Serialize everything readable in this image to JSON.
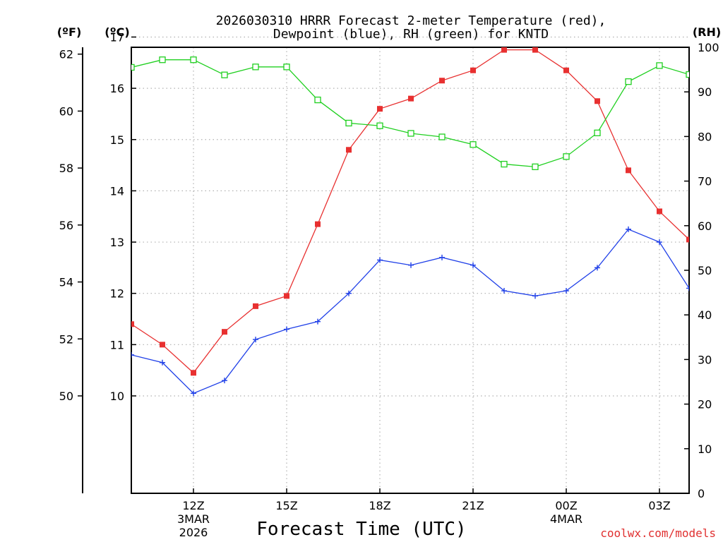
{
  "chart_data": {
    "type": "line",
    "title": "2026030310 HRRR Forecast 2-meter Temperature (red),",
    "title_line2": "Dewpoint (blue), RH (green) for KNTD",
    "xlabel": "Forecast Time (UTC)",
    "unit_labels": {
      "fahrenheit": "(ºF)",
      "celsius": "(ºC)",
      "rh": "(RH)"
    },
    "hours": [
      0,
      1,
      2,
      3,
      4,
      5,
      6,
      7,
      8,
      9,
      10,
      11,
      12,
      13,
      14,
      15,
      16,
      17,
      18,
      19
    ],
    "x_ticks": [
      {
        "hour": 2,
        "label": "12Z",
        "date_line1": "3MAR",
        "date_line2": "2026"
      },
      {
        "hour": 5,
        "label": "15Z"
      },
      {
        "hour": 8,
        "label": "18Z"
      },
      {
        "hour": 11,
        "label": "21Z"
      },
      {
        "hour": 14,
        "label": "00Z",
        "date_line1": "4MAR"
      },
      {
        "hour": 17,
        "label": "03Z"
      }
    ],
    "celsius_axis": {
      "range": [
        8.1,
        16.8
      ],
      "ticks": [
        "10",
        "11",
        "12",
        "13",
        "14",
        "15",
        "16",
        "17"
      ]
    },
    "fahrenheit_axis": {
      "range": [
        46.58,
        62.24
      ],
      "ticks": [
        "50",
        "52",
        "54",
        "56",
        "58",
        "60",
        "62"
      ]
    },
    "rh_axis": {
      "range": [
        0,
        100
      ],
      "ticks": [
        "0",
        "10",
        "20",
        "30",
        "40",
        "50",
        "60",
        "70",
        "80",
        "90",
        "100"
      ]
    },
    "series": [
      {
        "name": "2-meter Temperature",
        "unit": "C",
        "color": "#e83030",
        "marker": "filled-square",
        "values": [
          11.4,
          11.0,
          10.45,
          11.25,
          11.75,
          11.95,
          13.35,
          14.8,
          15.6,
          15.8,
          16.15,
          16.35,
          16.75,
          16.75,
          16.35,
          15.75,
          14.4,
          13.6,
          13.05,
          null
        ]
      },
      {
        "name": "Dewpoint",
        "unit": "C",
        "color": "#2040e8",
        "marker": "plus",
        "values": [
          10.8,
          10.65,
          10.05,
          10.3,
          11.1,
          11.3,
          11.45,
          12.0,
          12.65,
          12.55,
          12.7,
          12.55,
          12.05,
          11.95,
          12.05,
          12.5,
          13.25,
          13.0,
          12.1,
          null
        ]
      },
      {
        "name": "RH",
        "unit": "%",
        "color": "#20d020",
        "marker": "open-square",
        "values": [
          95.5,
          97.2,
          97.2,
          93.8,
          95.6,
          95.6,
          88.2,
          83.0,
          82.4,
          80.7,
          79.9,
          78.2,
          73.8,
          73.2,
          75.5,
          80.8,
          92.3,
          95.9,
          93.9,
          null
        ]
      }
    ]
  },
  "credit": "coolwx.com/models"
}
